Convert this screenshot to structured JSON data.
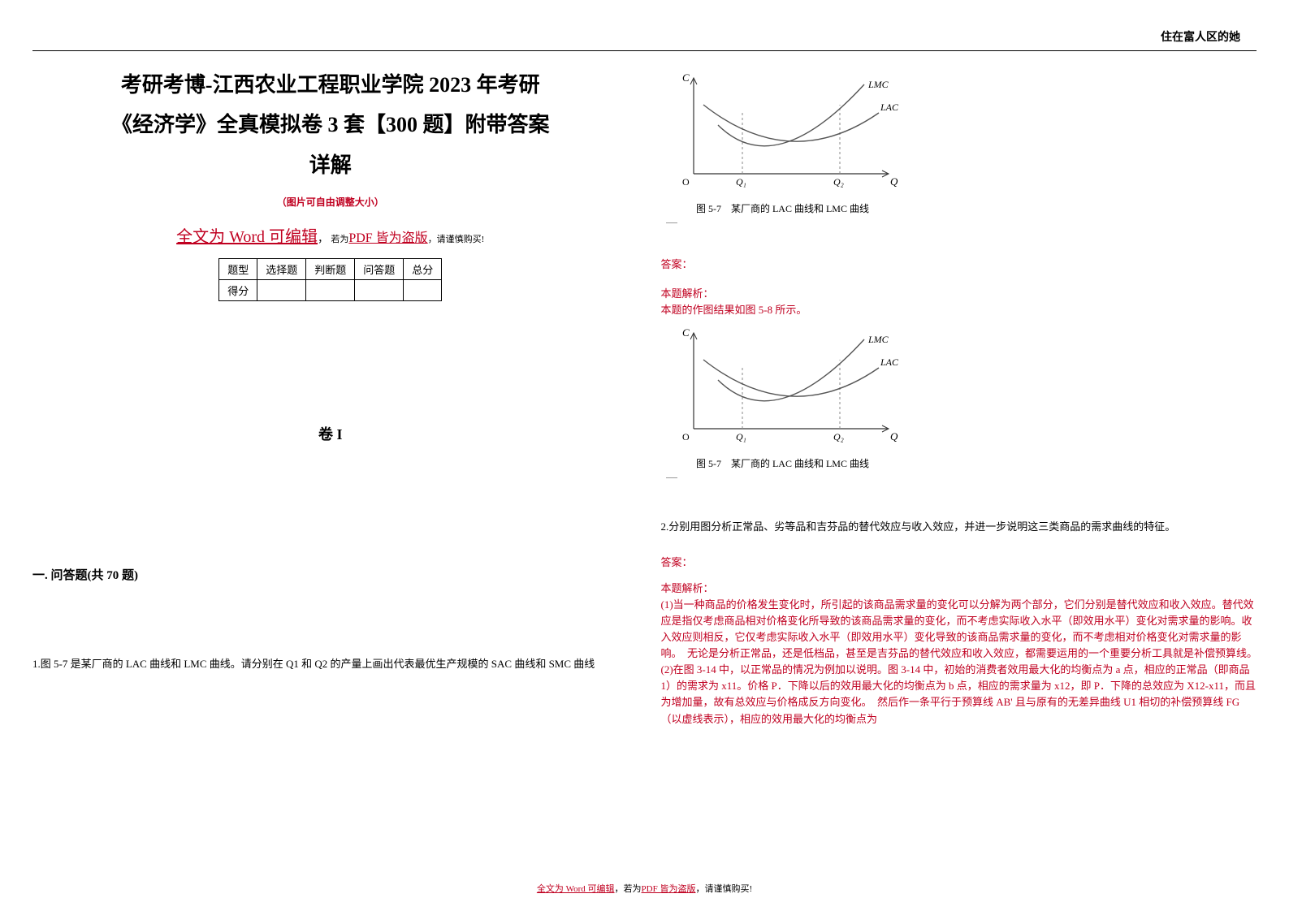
{
  "headerCorner": "住在富人区的她",
  "title": {
    "line1": "考研考博-江西农业工程职业学院 2023 年考研",
    "line2": "《经济学》全真模拟卷 3 套【300 题】附带答案",
    "line3": "详解"
  },
  "subnote": "（图片可自由调整大小）",
  "editableLine": {
    "part1": "全文为 Word 可编辑",
    "part2": "，",
    "part3_small": "若为",
    "part4": "PDF 皆为盗版",
    "part5": "，请谨慎购买!"
  },
  "scoreTable": {
    "headers": [
      "题型",
      "选择题",
      "判断题",
      "问答题",
      "总分"
    ],
    "row2Label": "得分"
  },
  "juanLabel": "卷 I",
  "sectionHeading": "一. 问答题(共 70 题)",
  "q1": {
    "text": "1.图 5-7 是某厂商的 LAC 曲线和 LMC 曲线。请分别在 Q1 和 Q2 的产量上画出代表最优生产规模的 SAC 曲线和 SMC 曲线"
  },
  "figure": {
    "caption": "图 5-7　某厂商的 LAC 曲线和 LMC 曲线",
    "yLabel": "C",
    "xLabel": "Q",
    "q1Label": "Q₁",
    "q2Label": "Q₂",
    "lmcLabel": "LMC",
    "lacLabel": "LAC",
    "origin": "O",
    "colors": {
      "axis": "#333333",
      "curve": "#555555",
      "text": "#000000",
      "dashed": "#888888"
    }
  },
  "answerLabel": "答案：",
  "analysisLabel": "本题解析：",
  "analysis1": "本题的作图结果如图 5-8 所示。",
  "q2": {
    "text": "2.分别用图分析正常品、劣等品和吉芬品的替代效应与收入效应，并进一步说明这三类商品的需求曲线的特征。",
    "analysis": "(1)当一种商品的价格发生变化时，所引起的该商品需求量的变化可以分解为两个部分，它们分别是替代效应和收入效应。替代效应是指仅考虑商品相对价格变化所导致的该商品需求量的变化，而不考虑实际收入水平（即效用水平）变化对需求量的影响。收入效应则相反，它仅考虑实际收入水平（即效用水平）变化导致的该商品需求量的变化，而不考虑相对价格变化对需求量的影响。　无论是分析正常品，还是低档品，甚至是吉芬品的替代效应和收入效应，都需要运用的一个重要分析工具就是补偿预算线。　(2)在图 3-14 中，以正常品的情况为例加以说明。图 3-14 中，初始的消费者效用最大化的均衡点为 a 点，相应的正常品（即商品 1）的需求为 x11。价格 P．下降以后的效用最大化的均衡点为 b 点，相应的需求量为 x12，即 P．下降的总效应为 X12-x11，而且为增加量，故有总效应与价格成反方向变化。　然后作一条平行于预算线 AB' 且与原有的无差异曲线 U1 相切的补偿预算线 FG（以虚线表示），相应的效用最大化的均衡点为"
  },
  "footer": {
    "p1": "全文为 Word 可编辑",
    "p2": "，若为",
    "p3": "PDF 皆为盗版",
    "p4": "，请谨慎购买!"
  }
}
